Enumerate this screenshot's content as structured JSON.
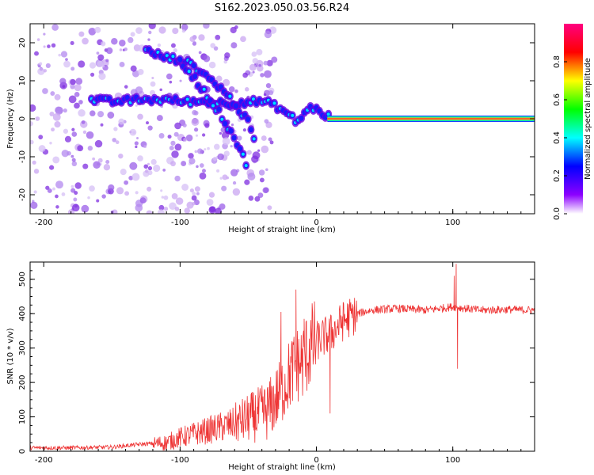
{
  "chart_data": [
    {
      "type": "heatmap",
      "title": "S162.2023.050.03.56.R24",
      "xlabel": "Height of straight line (km)",
      "ylabel": "Frequency (Hz)",
      "xlim": [
        -210,
        160
      ],
      "ylim": [
        -25,
        25
      ],
      "xticks": [
        -200,
        -100,
        0,
        100
      ],
      "yticks": [
        -20,
        -10,
        0,
        10,
        20
      ],
      "colorbar": {
        "label": "Normalized spectral amplitude",
        "range": [
          0,
          1
        ],
        "ticks": [
          "0.0",
          "0.2",
          "0.4",
          "0.6",
          "0.8"
        ],
        "colormap": [
          "#ffffff",
          "#8c00ff",
          "#0000ff",
          "#00ffff",
          "#00ff00",
          "#ffff00",
          "#ff0000",
          "#ff0080"
        ]
      },
      "ridges": [
        {
          "x": [
            -165,
            -150,
            -130,
            -110,
            -95,
            -80,
            -65,
            -50,
            -38,
            -28,
            -20,
            -14,
            -8,
            -3,
            2,
            6,
            10
          ],
          "y": [
            5,
            4.5,
            5,
            5,
            4.5,
            4.5,
            4,
            4.5,
            4.5,
            3,
            1,
            -1,
            2,
            3,
            2,
            1,
            0.5
          ]
        },
        {
          "x": [
            -125,
            -110,
            -100,
            -90,
            -80,
            -70,
            -60,
            -50,
            -45
          ],
          "y": [
            18,
            16,
            15.5,
            14,
            11,
            8,
            4,
            -1,
            -6
          ]
        },
        {
          "x": [
            -100,
            -90,
            -80,
            -70,
            -60,
            -50
          ],
          "y": [
            15,
            11,
            6,
            1,
            -5,
            -13
          ]
        }
      ],
      "carrier": {
        "frequency": 0,
        "x_start": 8,
        "x_end": 160
      }
    },
    {
      "type": "line",
      "xlabel": "Height of straight line (km)",
      "ylabel": "SNR (10 * v/v)",
      "xlim": [
        -210,
        160
      ],
      "ylim": [
        0,
        550
      ],
      "xticks": [
        -200,
        -100,
        0,
        100
      ],
      "yticks": [
        0,
        100,
        200,
        300,
        400,
        500
      ],
      "line_color": "#ee3333",
      "profile": {
        "x": [
          -210,
          -180,
          -150,
          -130,
          -110,
          -100,
          -90,
          -80,
          -70,
          -60,
          -50,
          -40,
          -35,
          -30,
          -25,
          -20,
          -15,
          -10,
          -5,
          0,
          5,
          10,
          15,
          20,
          25,
          30,
          40,
          60,
          80,
          100,
          120,
          140,
          160
        ],
        "y": [
          10,
          10,
          12,
          20,
          25,
          40,
          50,
          60,
          70,
          80,
          95,
          110,
          120,
          150,
          180,
          220,
          250,
          260,
          300,
          320,
          330,
          340,
          360,
          380,
          390,
          400,
          410,
          415,
          410,
          420,
          410,
          412,
          410
        ]
      },
      "spikes": [
        {
          "x": -26,
          "y": 405
        },
        {
          "x": -15,
          "y": 470
        },
        {
          "x": -9,
          "y": 385
        },
        {
          "x": 10,
          "y": 110
        },
        {
          "x": 18,
          "y": 395
        },
        {
          "x": 101,
          "y": 510
        },
        {
          "x": 102.5,
          "y": 545
        },
        {
          "x": 103.5,
          "y": 240
        }
      ]
    }
  ]
}
